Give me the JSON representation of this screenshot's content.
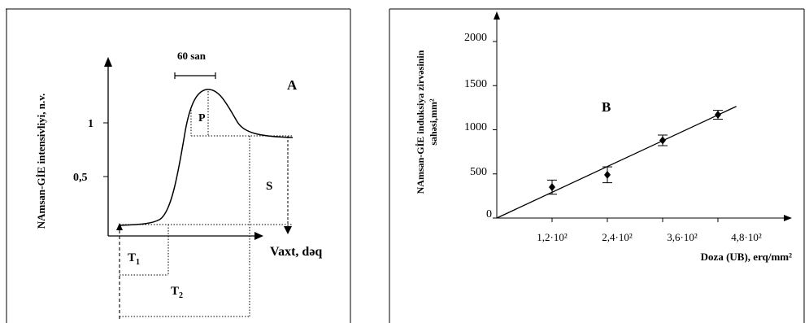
{
  "panel_a": {
    "panel_letter": "A",
    "ylabel": "NAmsan-GİE intensivliyi, n.v.",
    "xlabel": "Vaxt, dəq",
    "yticks": [
      "1",
      "0,5"
    ],
    "interval_label": "60 san",
    "region_labels": {
      "p": "P",
      "s": "S"
    },
    "time_labels": {
      "t1_main": "T",
      "t1_sub": "1",
      "t2_main": "T",
      "t2_sub": "2"
    }
  },
  "panel_b": {
    "panel_letter": "B",
    "ylabel_line1": "NAmsan-GİE induksiya zirvəsinin",
    "ylabel_line2": "sahəsi,mm²",
    "xlabel": "Doza (UB), erq/mm²",
    "yticks": [
      "2000",
      "1500",
      "1000",
      "500",
      "0"
    ],
    "xticks": [
      "1,2·10²",
      "2,4·10²",
      "3,6·10²",
      "4,8·10²"
    ]
  },
  "chart_data": [
    {
      "type": "line",
      "title": "A",
      "xlabel": "Vaxt, dəq",
      "ylabel": "NAmsan-GİE intensivliyi, n.v.",
      "yticks": [
        0.5,
        1
      ],
      "annotations": [
        "60 san",
        "P",
        "S",
        "T1",
        "T2"
      ]
    },
    {
      "type": "scatter",
      "title": "B",
      "xlabel": "Doza (UB), erq/mm²",
      "ylabel": "NAmsan-GİE induksiya zirvəsinin sahəsi,mm²",
      "x": [
        120,
        240,
        360,
        480
      ],
      "x_tick_labels": [
        "1,2·10²",
        "2,4·10²",
        "3,6·10²",
        "4,8·10²"
      ],
      "y": [
        350,
        490,
        880,
        1170
      ],
      "y_error": [
        80,
        90,
        60,
        50
      ],
      "fit_line": {
        "x": [
          0,
          520
        ],
        "y": [
          0,
          1265
        ]
      },
      "xlim": [
        0,
        590
      ],
      "ylim": [
        0,
        2100
      ],
      "yticks": [
        0,
        500,
        1000,
        1500,
        2000
      ]
    }
  ]
}
